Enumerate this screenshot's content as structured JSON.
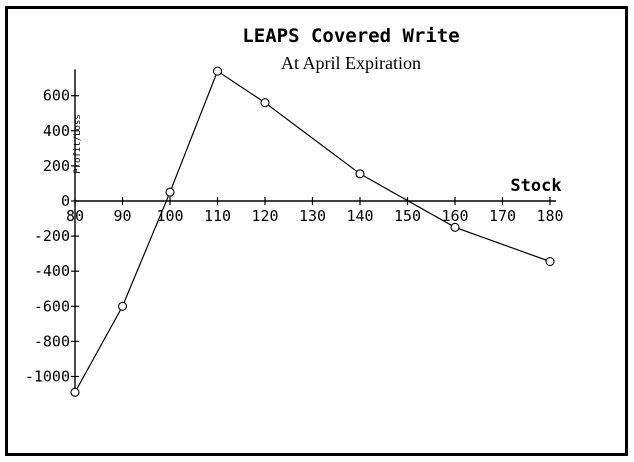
{
  "chart_data": {
    "type": "line",
    "title": "LEAPS Covered Write",
    "subtitle": "At April Expiration",
    "xlabel": "Stock",
    "ylabel": "Profit/Loss",
    "xlim": [
      80,
      180
    ],
    "ylim": [
      -1100,
      750
    ],
    "x_ticks": [
      "80",
      "90",
      "100",
      "110",
      "120",
      "130",
      "140",
      "150",
      "160",
      "170",
      "180"
    ],
    "y_ticks": [
      "600",
      "400",
      "200",
      "0",
      "-200",
      "-400",
      "-600",
      "-800",
      "-1000"
    ],
    "series": [
      {
        "x": [
          80,
          90,
          100,
          110,
          120,
          140,
          160,
          180
        ],
        "y": [
          -1090,
          -600,
          50,
          740,
          560,
          155,
          -150,
          -345
        ],
        "markers": [
          80,
          90,
          100,
          110,
          120,
          140,
          160,
          180
        ]
      }
    ],
    "line_color": "#000000",
    "grid": false
  }
}
